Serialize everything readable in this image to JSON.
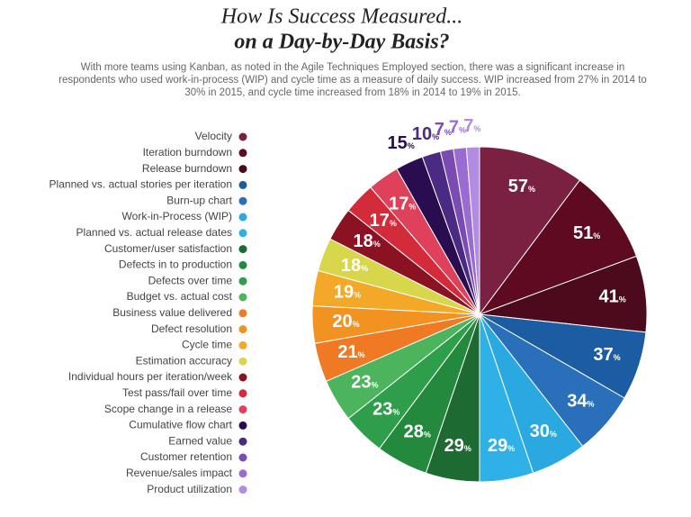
{
  "chart_data": {
    "type": "pie",
    "title": [
      "How Is Success Measured...",
      "on a Day-by-Day Basis?"
    ],
    "subtitle": [
      "With more teams using Kanban, as noted in the Agile Techniques Employed section, there was a significant increase in",
      "respondents who used work-in-process (WIP) and cycle time as a measure of daily success. WIP increased from 27% in 2014 to",
      "30% in 2015, and cycle time increased from 18% in 2014 to 19% in 2015."
    ],
    "categories": [
      "Velocity",
      "Iteration burndown",
      "Release burndown",
      "Planned vs. actual stories per iteration",
      "Burn-up chart",
      "Work-in-Process (WIP)",
      "Planned vs. actual release dates",
      "Customer/user satisfaction",
      "Defects in to production",
      "Defects over time",
      "Budget vs. actual cost",
      "Business value delivered",
      "Defect resolution",
      "Cycle time",
      "Estimation accuracy",
      "Individual hours per iteration/week",
      "Test pass/fail over time",
      "Scope change in a release",
      "Cumulative flow chart",
      "Earned value",
      "Customer retention",
      "Revenue/sales impact",
      "Product utilization"
    ],
    "values": [
      57,
      51,
      41,
      37,
      34,
      30,
      29,
      29,
      28,
      23,
      23,
      21,
      20,
      19,
      18,
      18,
      17,
      17,
      15,
      10,
      7,
      7,
      7
    ],
    "value_labels": [
      "57%",
      "51%",
      "41%",
      "37%",
      "34%",
      "30%",
      "29%",
      "29%",
      "28%",
      "23%",
      "23%",
      "21%",
      "20%",
      "19%",
      "18%",
      "18%",
      "17%",
      "17%",
      "15%",
      "10%",
      "7%",
      "7%",
      "7%"
    ],
    "colors": [
      "#7a2142",
      "#5e0b22",
      "#4b0b1c",
      "#1b5ca2",
      "#2a6fba",
      "#2aa9e1",
      "#2fb0e6",
      "#1d6a33",
      "#238a3d",
      "#2f9e4a",
      "#4cb45c",
      "#ef7a23",
      "#f29321",
      "#f4a827",
      "#d8d64b",
      "#8a1222",
      "#d42b3a",
      "#de4159",
      "#2a0c50",
      "#4a2a82",
      "#7a4bb2",
      "#9a6cd2",
      "#b28ce2"
    ]
  }
}
